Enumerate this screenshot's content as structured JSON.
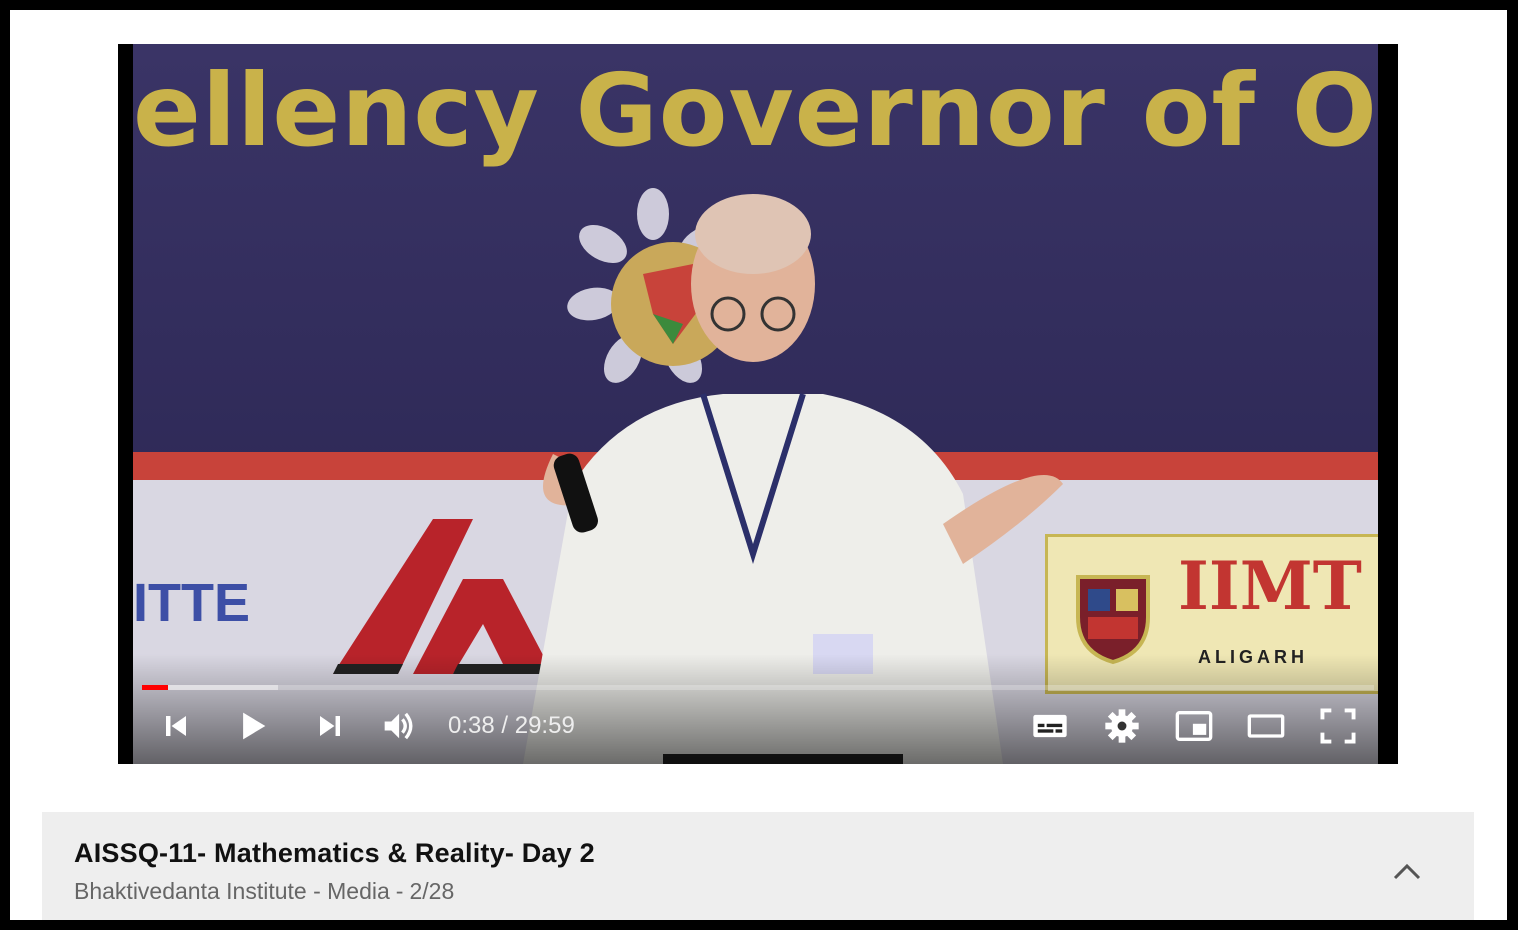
{
  "player": {
    "banner_text": "ellency Governor of Od",
    "sponsor_left": "ITTE",
    "sponsor_right": "IIMT",
    "sponsor_right_sub": "ALIGARH",
    "progress": {
      "played_fraction": 0.021,
      "buffered_fraction": 0.11,
      "played_color": "#ff0000"
    },
    "controls": {
      "current_time": "0:38",
      "separator": " / ",
      "duration": "29:59",
      "left": [
        "previous-icon",
        "play-icon",
        "next-icon",
        "volume-icon"
      ],
      "right": [
        "subtitles-icon",
        "settings-gear-icon",
        "miniplayer-icon",
        "theater-mode-icon",
        "fullscreen-icon"
      ]
    }
  },
  "playlist": {
    "title": "AISSQ-11- Mathematics & Reality- Day 2",
    "channel": "Bhaktivedanta Institute - Media",
    "separator": "-",
    "position": "2/28",
    "toggle_icon": "chevron-up-icon"
  }
}
